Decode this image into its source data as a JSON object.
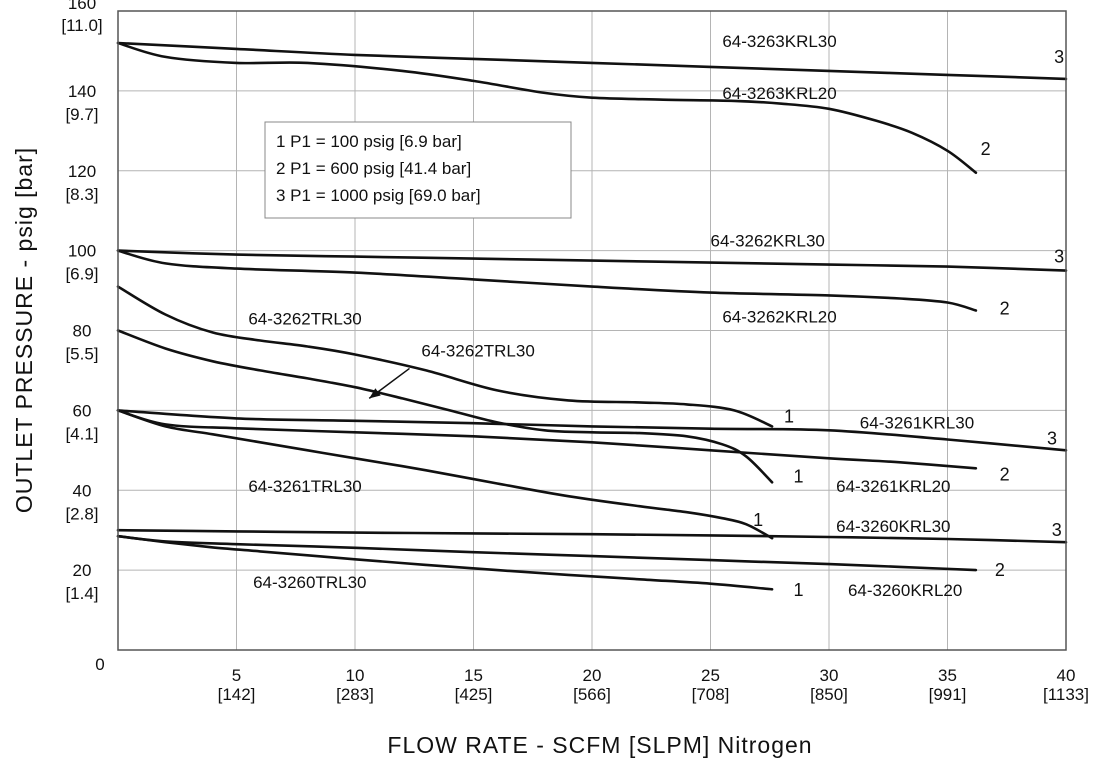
{
  "chart_data": {
    "type": "line",
    "xlabel": "FLOW RATE - SCFM [SLPM] Nitrogen",
    "ylabel": "OUTLET PRESSURE - psig [bar]",
    "xlim": [
      0,
      40
    ],
    "ylim": [
      0,
      160
    ],
    "grid": true,
    "x_ticks": [
      {
        "value": 0,
        "label": "0",
        "sublabel": ""
      },
      {
        "value": 5,
        "label": "5",
        "sublabel": "[142]"
      },
      {
        "value": 10,
        "label": "10",
        "sublabel": "[283]"
      },
      {
        "value": 15,
        "label": "15",
        "sublabel": "[425]"
      },
      {
        "value": 20,
        "label": "20",
        "sublabel": "[566]"
      },
      {
        "value": 25,
        "label": "25",
        "sublabel": "[708]"
      },
      {
        "value": 30,
        "label": "30",
        "sublabel": "[850]"
      },
      {
        "value": 35,
        "label": "35",
        "sublabel": "[991]"
      },
      {
        "value": 40,
        "label": "40",
        "sublabel": "[1133]"
      }
    ],
    "y_ticks": [
      {
        "value": 20,
        "label": "20",
        "sublabel": "[1.4]"
      },
      {
        "value": 40,
        "label": "40",
        "sublabel": "[2.8]"
      },
      {
        "value": 60,
        "label": "60",
        "sublabel": "[4.1]"
      },
      {
        "value": 80,
        "label": "80",
        "sublabel": "[5.5]"
      },
      {
        "value": 100,
        "label": "100",
        "sublabel": "[6.9]"
      },
      {
        "value": 120,
        "label": "120",
        "sublabel": "[8.3]"
      },
      {
        "value": 140,
        "label": "140",
        "sublabel": "[9.7]"
      },
      {
        "value": 160,
        "label": "160",
        "sublabel": "[11.0]"
      }
    ],
    "legend": {
      "placement": "upper-left",
      "entries": [
        "1  P1 = 100 psig [6.9 bar]",
        "2  P1 = 600 psig [41.4 bar]",
        "3  P1 = 1000 psig [69.0 bar]"
      ]
    },
    "series": [
      {
        "name": "64-3263KRL30",
        "curve": "3",
        "x": [
          0,
          5,
          10,
          15,
          20,
          25,
          30,
          35,
          40
        ],
        "y": [
          152,
          150.5,
          149,
          148,
          147,
          146,
          145,
          144,
          143
        ]
      },
      {
        "name": "64-3263KRL20",
        "curve": "2",
        "x": [
          0,
          2,
          5,
          8,
          12,
          15,
          18,
          20,
          23,
          26,
          28,
          30,
          32,
          33.5,
          35,
          36.2
        ],
        "y": [
          152,
          148.5,
          147,
          147,
          145,
          142.5,
          139.5,
          138.3,
          137.8,
          137.5,
          136.8,
          135.5,
          132.5,
          129.5,
          125,
          119.5
        ]
      },
      {
        "name": "64-3262KRL30",
        "curve": "3",
        "x": [
          0,
          5,
          10,
          15,
          20,
          25,
          30,
          35,
          40
        ],
        "y": [
          100,
          99,
          98.5,
          98,
          97.5,
          97,
          96.5,
          96,
          95
        ]
      },
      {
        "name": "64-3262KRL20",
        "curve": "2",
        "x": [
          0,
          2,
          5,
          10,
          15,
          20,
          25,
          30,
          33,
          35,
          36.2
        ],
        "y": [
          100,
          96.8,
          95.5,
          94.5,
          92.8,
          91,
          89.5,
          88.8,
          88,
          87,
          85
        ]
      },
      {
        "name": "64-3262TRL30",
        "curve": "1",
        "x": [
          0,
          2,
          4,
          6,
          8,
          10,
          13,
          16,
          19,
          22,
          24,
          26,
          27.6
        ],
        "y": [
          91,
          84,
          79.5,
          77.5,
          76,
          74,
          70,
          65,
          62.5,
          62,
          61.5,
          60,
          56
        ]
      },
      {
        "name": "64-3262TRL30",
        "curve": "1",
        "x": [
          0,
          2,
          4,
          6,
          8,
          10,
          12,
          14,
          16,
          18,
          20,
          22,
          24,
          25.5,
          26.5,
          27.6
        ],
        "y": [
          80,
          75.5,
          72.3,
          70,
          68,
          65.8,
          63,
          60,
          57,
          55,
          54.5,
          54.3,
          53.5,
          51.5,
          48.5,
          42
        ]
      },
      {
        "name": "64-3261KRL30",
        "curve": "3",
        "x": [
          0,
          5,
          10,
          15,
          20,
          25,
          30,
          35,
          40
        ],
        "y": [
          60,
          58,
          57.4,
          56.8,
          56,
          55.4,
          55,
          52.7,
          50
        ]
      },
      {
        "name": "64-3261KRL20",
        "curve": "2",
        "x": [
          0,
          2,
          5,
          10,
          15,
          20,
          25,
          30,
          33,
          36.2
        ],
        "y": [
          60,
          56.5,
          55.5,
          54.5,
          53.5,
          52,
          50,
          48,
          47,
          45.5
        ]
      },
      {
        "name": "64-3261TRL30",
        "curve": "1",
        "x": [
          0,
          2,
          4,
          6,
          8,
          10,
          13,
          16,
          19,
          22,
          24,
          25.5,
          26.5,
          27.6
        ],
        "y": [
          60,
          56,
          54,
          52,
          50,
          48,
          45,
          41.7,
          38.5,
          36,
          34.5,
          33,
          31.5,
          28
        ]
      },
      {
        "name": "64-3260KRL30",
        "curve": "3",
        "x": [
          0,
          5,
          10,
          15,
          20,
          25,
          30,
          35,
          40
        ],
        "y": [
          30,
          29.7,
          29.4,
          29.2,
          29,
          28.7,
          28.3,
          27.8,
          27
        ]
      },
      {
        "name": "64-3260KRL20",
        "curve": "2",
        "x": [
          0,
          2,
          5,
          10,
          15,
          20,
          25,
          30,
          33,
          36.2
        ],
        "y": [
          28.5,
          27.2,
          26.5,
          25.6,
          24.5,
          23.5,
          22.5,
          21.5,
          20.8,
          20
        ]
      },
      {
        "name": "64-3260TRL30",
        "curve": "1",
        "x": [
          0,
          2,
          4,
          6,
          8,
          10,
          13,
          16,
          19,
          22,
          25,
          27.6
        ],
        "y": [
          28.5,
          27,
          25.7,
          24.7,
          23.7,
          22.7,
          21.3,
          20,
          18.8,
          17.7,
          16.6,
          15.2
        ]
      }
    ],
    "annotations": [
      {
        "text": "64-3263KRL30",
        "x": 25.5,
        "y": 151
      },
      {
        "text": "3",
        "x": 39.5,
        "y": 147
      },
      {
        "text": "64-3263KRL20",
        "x": 25.5,
        "y": 138
      },
      {
        "text": "2",
        "x": 36.4,
        "y": 124
      },
      {
        "text": "64-3262KRL30",
        "x": 25,
        "y": 101
      },
      {
        "text": "3",
        "x": 39.5,
        "y": 97
      },
      {
        "text": "64-3262KRL20",
        "x": 25.5,
        "y": 82
      },
      {
        "text": "2",
        "x": 37.2,
        "y": 84
      },
      {
        "text": "64-3262TRL30",
        "x": 5.5,
        "y": 81.5
      },
      {
        "text": "64-3262TRL30",
        "x": 12.8,
        "y": 73.5
      },
      {
        "text": "1",
        "x": 28.1,
        "y": 57
      },
      {
        "text": "64-3261KRL30",
        "x": 31.3,
        "y": 55.5
      },
      {
        "text": "3",
        "x": 39.2,
        "y": 51.5
      },
      {
        "text": "1",
        "x": 28.5,
        "y": 42
      },
      {
        "text": "64-3261KRL20",
        "x": 30.3,
        "y": 39.5
      },
      {
        "text": "2",
        "x": 37.2,
        "y": 42.5
      },
      {
        "text": "64-3261TRL30",
        "x": 5.5,
        "y": 39.5
      },
      {
        "text": "1",
        "x": 26.8,
        "y": 31
      },
      {
        "text": "64-3260KRL30",
        "x": 30.3,
        "y": 29.5
      },
      {
        "text": "3",
        "x": 39.4,
        "y": 28.5
      },
      {
        "text": "2",
        "x": 37,
        "y": 18.5
      },
      {
        "text": "64-3260TRL30",
        "x": 5.7,
        "y": 15.5
      },
      {
        "text": "1",
        "x": 28.5,
        "y": 13.5
      },
      {
        "text": "64-3260KRL20",
        "x": 30.8,
        "y": 13.5
      }
    ],
    "arrow": {
      "label_index": 9,
      "from": [
        12.3,
        70.5
      ],
      "to": [
        10.6,
        63
      ]
    }
  }
}
